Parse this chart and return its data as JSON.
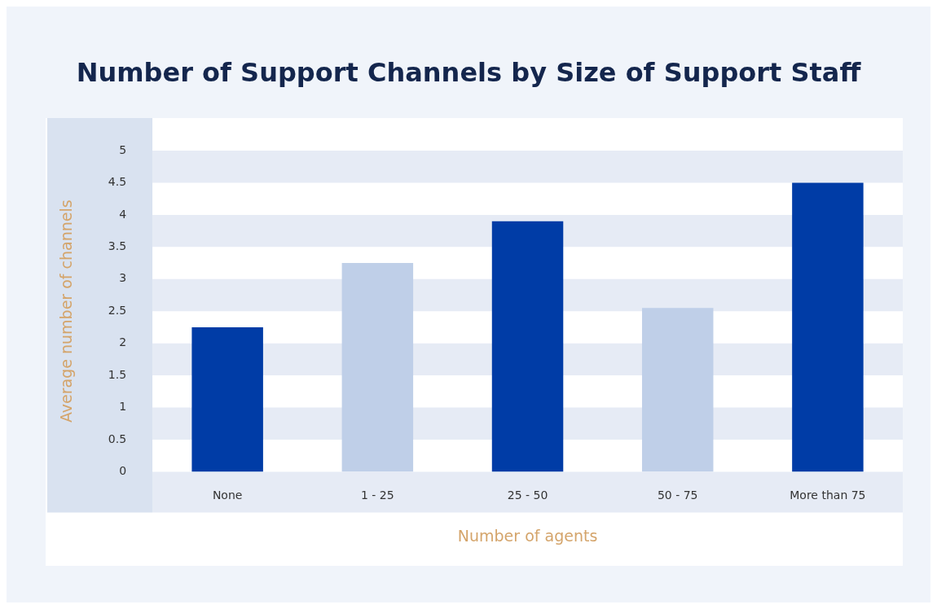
{
  "chart_data": {
    "type": "bar",
    "title": "Number of Support Channels by Size of Support Staff",
    "xlabel": "Number of agents",
    "ylabel": "Average number of channels",
    "categories": [
      "None",
      "1 - 25",
      "25 - 50",
      "50 - 75",
      "More than 75"
    ],
    "values": [
      2.25,
      3.25,
      3.9,
      2.55,
      4.5
    ],
    "colors": [
      "#003ca6",
      "#bfcfe8",
      "#003ca6",
      "#bfcfe8",
      "#003ca6"
    ],
    "ylim": [
      0,
      5
    ],
    "yticks": [
      0,
      0.5,
      1,
      1.5,
      2,
      2.5,
      3,
      3.5,
      4,
      4.5,
      5
    ]
  }
}
